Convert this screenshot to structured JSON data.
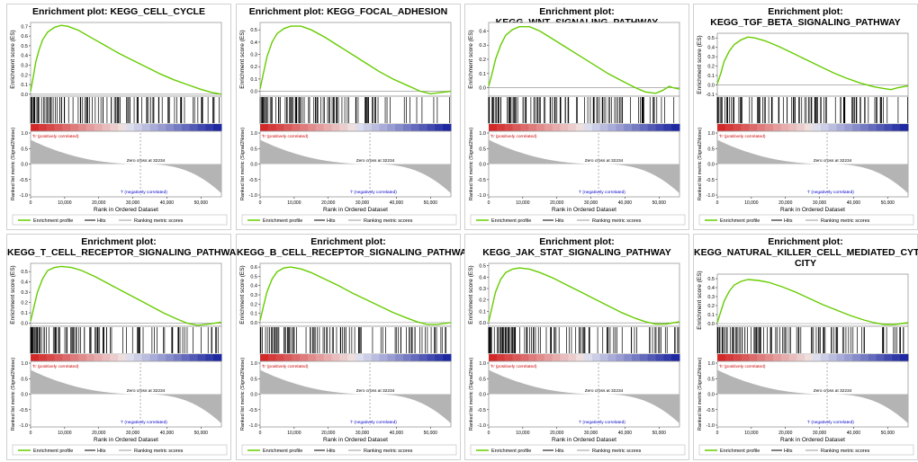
{
  "colors": {
    "es_line": "#66cc00",
    "hits": "#000000",
    "metric_fill": "#b4b4b4",
    "pos_label": "#cc0000",
    "neg_label": "#0000cc",
    "frame": "#9a9a9a"
  },
  "common": {
    "ylabel_es": "Enrichment score (ES)",
    "ylabel_metric": "Ranked list metric (Signal2Noise)",
    "xlabel": "Rank in Ordered Dataset",
    "pos_label": "'h' (positively correlated)",
    "neg_label": "'l' (negatively correlated)",
    "zero_cross": "Zero cross at 32234",
    "legend_es": "Enrichment profile",
    "legend_hits": "Hits",
    "legend_metric": "Ranking metric scores",
    "x_ticks": [
      0,
      10000,
      20000,
      30000,
      40000,
      50000
    ],
    "x_tick_labels": [
      "0",
      "10,000",
      "20,000",
      "30,000",
      "40,000",
      "50,000"
    ],
    "x_max": 56000,
    "metric_ticks": [
      1.0,
      0.5,
      0.0,
      -0.5,
      -1.0
    ],
    "metric_tick_labels": [
      "1.0",
      "0.5",
      "0.0",
      "-0.5",
      "-1.0"
    ]
  },
  "chart_data": [
    {
      "type": "line",
      "title": "Enrichment plot: KEGG_CELL_CYCLE",
      "title_lines": [
        "Enrichment plot: KEGG_CELL_CYCLE"
      ],
      "ylim": [
        -0.02,
        0.74
      ],
      "y_ticks": [
        0.0,
        0.1,
        0.2,
        0.3,
        0.4,
        0.5,
        0.6,
        0.7
      ],
      "y_tick_labels": [
        "0.0",
        "0.1",
        "0.2",
        "0.3",
        "0.4",
        "0.5",
        "0.6",
        "0.7"
      ],
      "es_points": [
        [
          0,
          0.03
        ],
        [
          800,
          0.18
        ],
        [
          1500,
          0.33
        ],
        [
          2500,
          0.46
        ],
        [
          3500,
          0.56
        ],
        [
          5000,
          0.64
        ],
        [
          7000,
          0.69
        ],
        [
          9000,
          0.71
        ],
        [
          11000,
          0.7
        ],
        [
          14000,
          0.66
        ],
        [
          18000,
          0.58
        ],
        [
          22000,
          0.5
        ],
        [
          26000,
          0.42
        ],
        [
          30000,
          0.35
        ],
        [
          34000,
          0.28
        ],
        [
          38000,
          0.21
        ],
        [
          42000,
          0.15
        ],
        [
          46000,
          0.1
        ],
        [
          50000,
          0.05
        ],
        [
          53000,
          0.02
        ],
        [
          56000,
          0.0
        ]
      ],
      "hit_seed": 11,
      "hit_density": 0.5
    },
    {
      "type": "line",
      "title": "Enrichment plot: KEGG_FOCAL_ADHESION",
      "title_lines": [
        "Enrichment plot: KEGG_FOCAL_ADHESION"
      ],
      "ylim": [
        -0.04,
        0.56
      ],
      "y_ticks": [
        0.0,
        0.1,
        0.2,
        0.3,
        0.4,
        0.5
      ],
      "y_tick_labels": [
        "0.0",
        "0.1",
        "0.2",
        "0.3",
        "0.4",
        "0.5"
      ],
      "es_points": [
        [
          0,
          0.02
        ],
        [
          1000,
          0.15
        ],
        [
          2000,
          0.28
        ],
        [
          3500,
          0.4
        ],
        [
          5000,
          0.47
        ],
        [
          7000,
          0.51
        ],
        [
          9000,
          0.53
        ],
        [
          12000,
          0.53
        ],
        [
          15000,
          0.5
        ],
        [
          19000,
          0.44
        ],
        [
          23000,
          0.37
        ],
        [
          27000,
          0.3
        ],
        [
          31000,
          0.23
        ],
        [
          35000,
          0.16
        ],
        [
          39000,
          0.1
        ],
        [
          43000,
          0.05
        ],
        [
          47000,
          0.0
        ],
        [
          50000,
          -0.02
        ],
        [
          53000,
          -0.01
        ],
        [
          56000,
          0.0
        ]
      ],
      "hit_seed": 23,
      "hit_density": 0.65
    },
    {
      "type": "line",
      "title": "Enrichment plot: KEGG_WNT_SIGNALING_PATHWAY",
      "title_lines": [
        "Enrichment plot: KEGG_WNT_SIGNALING_PATHWAY"
      ],
      "ylim": [
        -0.06,
        0.46
      ],
      "y_ticks": [
        0.0,
        0.1,
        0.2,
        0.3,
        0.4
      ],
      "y_tick_labels": [
        "0.0",
        "0.1",
        "0.2",
        "0.3",
        "0.4"
      ],
      "es_points": [
        [
          0,
          0.01
        ],
        [
          1000,
          0.1
        ],
        [
          2000,
          0.2
        ],
        [
          3500,
          0.3
        ],
        [
          5000,
          0.37
        ],
        [
          7000,
          0.41
        ],
        [
          9000,
          0.43
        ],
        [
          12000,
          0.43
        ],
        [
          15000,
          0.4
        ],
        [
          19000,
          0.34
        ],
        [
          23000,
          0.28
        ],
        [
          27000,
          0.22
        ],
        [
          31000,
          0.16
        ],
        [
          35000,
          0.1
        ],
        [
          39000,
          0.05
        ],
        [
          43000,
          0.0
        ],
        [
          46000,
          -0.03
        ],
        [
          49000,
          -0.04
        ],
        [
          51000,
          -0.02
        ],
        [
          53000,
          0.01
        ],
        [
          54000,
          0.0
        ],
        [
          56000,
          -0.01
        ]
      ],
      "hit_seed": 37,
      "hit_density": 0.6
    },
    {
      "type": "line",
      "title": "Enrichment plot: KEGG_TGF_BETA_SIGNALING_PATHWAY",
      "title_lines": [
        "Enrichment plot:",
        "KEGG_TGF_BETA_SIGNALING_PATHWAY"
      ],
      "ylim": [
        -0.12,
        0.55
      ],
      "y_ticks": [
        -0.1,
        0.0,
        0.1,
        0.2,
        0.3,
        0.4,
        0.5
      ],
      "y_tick_labels": [
        "-0.1",
        "0.0",
        "0.1",
        "0.2",
        "0.3",
        "0.4",
        "0.5"
      ],
      "es_points": [
        [
          0,
          0.01
        ],
        [
          1000,
          0.12
        ],
        [
          2000,
          0.25
        ],
        [
          3500,
          0.36
        ],
        [
          5000,
          0.43
        ],
        [
          7000,
          0.48
        ],
        [
          9000,
          0.51
        ],
        [
          11000,
          0.5
        ],
        [
          14000,
          0.47
        ],
        [
          18000,
          0.41
        ],
        [
          22000,
          0.34
        ],
        [
          26000,
          0.27
        ],
        [
          30000,
          0.2
        ],
        [
          34000,
          0.13
        ],
        [
          38000,
          0.07
        ],
        [
          42000,
          0.02
        ],
        [
          46000,
          -0.02
        ],
        [
          49000,
          -0.04
        ],
        [
          51000,
          -0.05
        ],
        [
          53000,
          -0.03
        ],
        [
          56000,
          -0.01
        ]
      ],
      "hit_seed": 41,
      "hit_density": 0.45
    },
    {
      "type": "line",
      "title": "Enrichment plot: KEGG_T_CELL_RECEPTOR_SIGNALING_PATHWAY",
      "title_lines": [
        "Enrichment plot:",
        "KEGG_T_CELL_RECEPTOR_SIGNALING_PATHWAY"
      ],
      "ylim": [
        -0.03,
        0.58
      ],
      "y_ticks": [
        0.0,
        0.1,
        0.2,
        0.3,
        0.4,
        0.5
      ],
      "y_tick_labels": [
        "0.0",
        "0.1",
        "0.2",
        "0.3",
        "0.4",
        "0.5"
      ],
      "es_points": [
        [
          0,
          0.02
        ],
        [
          1000,
          0.16
        ],
        [
          2000,
          0.3
        ],
        [
          3500,
          0.43
        ],
        [
          5000,
          0.51
        ],
        [
          7000,
          0.54
        ],
        [
          9000,
          0.55
        ],
        [
          12000,
          0.54
        ],
        [
          15000,
          0.51
        ],
        [
          19000,
          0.45
        ],
        [
          23000,
          0.38
        ],
        [
          27000,
          0.31
        ],
        [
          31000,
          0.24
        ],
        [
          35000,
          0.17
        ],
        [
          39000,
          0.1
        ],
        [
          43000,
          0.04
        ],
        [
          46000,
          0.0
        ],
        [
          49000,
          -0.02
        ],
        [
          52000,
          -0.01
        ],
        [
          56000,
          0.01
        ]
      ],
      "hit_seed": 53,
      "hit_density": 0.7
    },
    {
      "type": "line",
      "title": "Enrichment plot: KEGG_B_CELL_RECEPTOR_SIGNALING_PATHWAY",
      "title_lines": [
        "Enrichment plot:",
        "KEGG_B_CELL_RECEPTOR_SIGNALING_PATHWAY"
      ],
      "ylim": [
        -0.04,
        0.64
      ],
      "y_ticks": [
        0.0,
        0.1,
        0.2,
        0.3,
        0.4,
        0.5,
        0.6
      ],
      "y_tick_labels": [
        "0.0",
        "0.1",
        "0.2",
        "0.3",
        "0.4",
        "0.5",
        "0.6"
      ],
      "es_points": [
        [
          0,
          0.02
        ],
        [
          1000,
          0.18
        ],
        [
          2000,
          0.33
        ],
        [
          3500,
          0.47
        ],
        [
          5000,
          0.55
        ],
        [
          7000,
          0.59
        ],
        [
          9000,
          0.6
        ],
        [
          12000,
          0.58
        ],
        [
          15000,
          0.54
        ],
        [
          19000,
          0.47
        ],
        [
          23000,
          0.4
        ],
        [
          27000,
          0.32
        ],
        [
          31000,
          0.25
        ],
        [
          35000,
          0.18
        ],
        [
          39000,
          0.11
        ],
        [
          43000,
          0.05
        ],
        [
          46000,
          0.01
        ],
        [
          49000,
          -0.02
        ],
        [
          52000,
          -0.02
        ],
        [
          56000,
          0.0
        ]
      ],
      "hit_seed": 61,
      "hit_density": 0.5
    },
    {
      "type": "line",
      "title": "Enrichment plot: KEGG_JAK_STAT_SIGNALING_PATHWAY",
      "title_lines": [
        "Enrichment plot:",
        "KEGG_JAK_STAT_SIGNALING_PATHWAY"
      ],
      "ylim": [
        -0.03,
        0.52
      ],
      "y_ticks": [
        0.0,
        0.1,
        0.2,
        0.3,
        0.4,
        0.5
      ],
      "y_tick_labels": [
        "0.0",
        "0.1",
        "0.2",
        "0.3",
        "0.4",
        "0.5"
      ],
      "es_points": [
        [
          0,
          0.01
        ],
        [
          1000,
          0.14
        ],
        [
          2000,
          0.27
        ],
        [
          3500,
          0.38
        ],
        [
          5000,
          0.44
        ],
        [
          7000,
          0.47
        ],
        [
          9000,
          0.48
        ],
        [
          12000,
          0.47
        ],
        [
          15000,
          0.44
        ],
        [
          19000,
          0.39
        ],
        [
          23000,
          0.33
        ],
        [
          27000,
          0.27
        ],
        [
          31000,
          0.21
        ],
        [
          35000,
          0.15
        ],
        [
          39000,
          0.09
        ],
        [
          43000,
          0.04
        ],
        [
          46000,
          0.01
        ],
        [
          49000,
          -0.01
        ],
        [
          52000,
          -0.01
        ],
        [
          56000,
          0.01
        ]
      ],
      "hit_seed": 71,
      "hit_density": 0.6
    },
    {
      "type": "line",
      "title": "Enrichment plot: KEGG_NATURAL_KILLER_CELL_MEDIATED_CYTOTOXICITY",
      "title_lines": [
        "Enrichment plot:",
        "KEGG_NATURAL_KILLER_CELL_MEDIATED_CYTOTOXI",
        "CITY"
      ],
      "ylim": [
        -0.03,
        0.55
      ],
      "y_ticks": [
        0.0,
        0.1,
        0.2,
        0.3,
        0.4,
        0.5
      ],
      "y_tick_labels": [
        "0.0",
        "0.1",
        "0.2",
        "0.3",
        "0.4",
        "0.5"
      ],
      "es_points": [
        [
          0,
          0.01
        ],
        [
          1000,
          0.13
        ],
        [
          2000,
          0.25
        ],
        [
          3500,
          0.36
        ],
        [
          5000,
          0.43
        ],
        [
          7000,
          0.47
        ],
        [
          9000,
          0.49
        ],
        [
          12000,
          0.48
        ],
        [
          15000,
          0.46
        ],
        [
          19000,
          0.41
        ],
        [
          23000,
          0.35
        ],
        [
          27000,
          0.28
        ],
        [
          31000,
          0.21
        ],
        [
          35000,
          0.15
        ],
        [
          39000,
          0.09
        ],
        [
          43000,
          0.04
        ],
        [
          46000,
          0.01
        ],
        [
          49000,
          -0.01
        ],
        [
          52000,
          -0.01
        ],
        [
          56000,
          0.01
        ]
      ],
      "hit_seed": 83,
      "hit_density": 0.55
    }
  ]
}
